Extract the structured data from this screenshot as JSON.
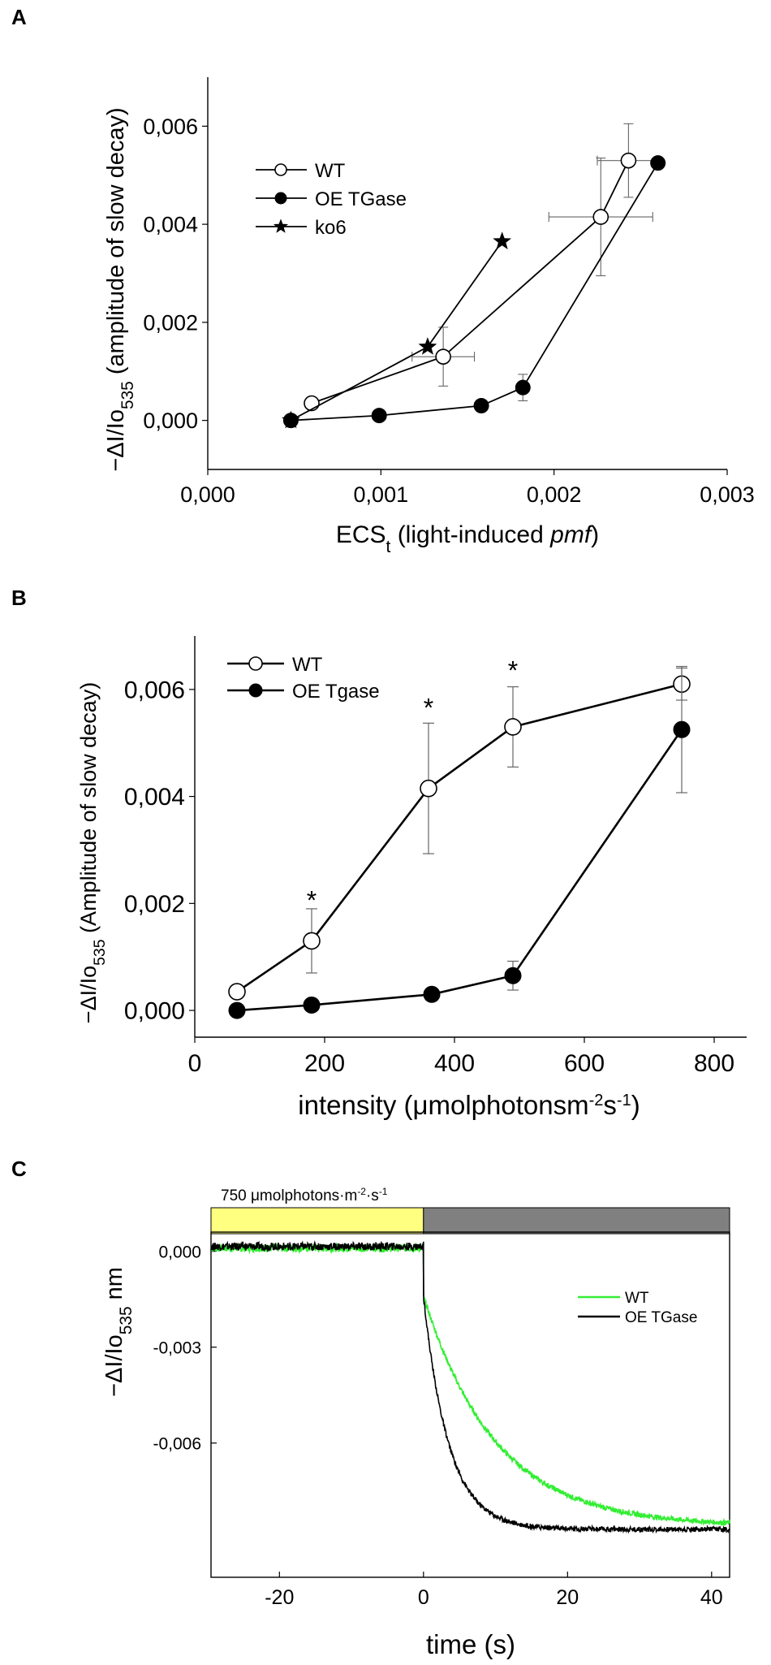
{
  "chart_data": [
    {
      "panel": "A",
      "type": "scatter",
      "xlabel": "ECS",
      "xlabel_sub": "t",
      "xlabel_rest": " (light-induced ",
      "xlabel_italic": "pmf",
      "xlabel_end": ")",
      "ylabel_prefix": "−ΔI/Io",
      "ylabel_sub": "535",
      "ylabel_rest": " (amplitude of slow decay)",
      "xlim": [
        0,
        0.003
      ],
      "ylim": [
        -0.001,
        0.007
      ],
      "xticks": [
        {
          "v": 0,
          "label": "0,000"
        },
        {
          "v": 0.001,
          "label": "0,001"
        },
        {
          "v": 0.002,
          "label": "0,002"
        },
        {
          "v": 0.003,
          "label": "0,003"
        }
      ],
      "yticks": [
        {
          "v": 0,
          "label": "0,000"
        },
        {
          "v": 0.002,
          "label": "0,002"
        },
        {
          "v": 0.004,
          "label": "0,004"
        },
        {
          "v": 0.006,
          "label": "0,006"
        }
      ],
      "legend": "top-left",
      "series": [
        {
          "name": "WT",
          "marker": "open-circle",
          "points": [
            {
              "x": 0.0006,
              "y": 0.00035,
              "xerr": 3e-05,
              "yerr": 0.0001
            },
            {
              "x": 0.00136,
              "y": 0.0013,
              "xerr": 0.00018,
              "yerr": 0.0006
            },
            {
              "x": 0.00227,
              "y": 0.00415,
              "xerr": 0.0003,
              "yerr": 0.0012
            },
            {
              "x": 0.00243,
              "y": 0.0053,
              "xerr": 0.00018,
              "yerr": 0.00075
            }
          ]
        },
        {
          "name": "OE TGase",
          "marker": "filled-circle",
          "points": [
            {
              "x": 0.00048,
              "y": 0.0,
              "xerr": 0,
              "yerr": 0
            },
            {
              "x": 0.00099,
              "y": 0.0001,
              "xerr": 0,
              "yerr": 0
            },
            {
              "x": 0.00158,
              "y": 0.0003,
              "xerr": 0,
              "yerr": 0
            },
            {
              "x": 0.00182,
              "y": 0.00067,
              "xerr": 0,
              "yerr": 0.00027
            },
            {
              "x": 0.0026,
              "y": 0.00525,
              "xerr": 0,
              "yerr": 0
            }
          ]
        },
        {
          "name": "ko6",
          "marker": "star",
          "points": [
            {
              "x": 0.00048,
              "y": 0.0,
              "xerr": 0,
              "yerr": 0
            },
            {
              "x": 0.00127,
              "y": 0.0015,
              "xerr": 0,
              "yerr": 0
            },
            {
              "x": 0.0017,
              "y": 0.00365,
              "xerr": 0,
              "yerr": 0
            }
          ]
        }
      ]
    },
    {
      "panel": "B",
      "type": "line",
      "xlabel_main": "intensity (μmolphotonsm",
      "xlabel_sup1": "-2",
      "xlabel_mid": "s",
      "xlabel_sup2": "-1",
      "xlabel_end": ")",
      "ylabel_prefix": "−ΔI/Io",
      "ylabel_sub": "535",
      "ylabel_rest": " (Amplitude of slow decay)",
      "xlim": [
        0,
        850
      ],
      "ylim": [
        -0.0005,
        0.007
      ],
      "xticks": [
        {
          "v": 0,
          "label": "0"
        },
        {
          "v": 200,
          "label": "200"
        },
        {
          "v": 400,
          "label": "400"
        },
        {
          "v": 600,
          "label": "600"
        },
        {
          "v": 800,
          "label": "800"
        }
      ],
      "yticks": [
        {
          "v": 0,
          "label": "0,000"
        },
        {
          "v": 0.002,
          "label": "0,002"
        },
        {
          "v": 0.004,
          "label": "0,004"
        },
        {
          "v": 0.006,
          "label": "0,006"
        }
      ],
      "legend": "top-left",
      "series": [
        {
          "name": "WT",
          "marker": "open-circle",
          "points": [
            {
              "x": 65,
              "y": 0.00035,
              "yerr": 0.0001
            },
            {
              "x": 180,
              "y": 0.0013,
              "yerr": 0.0006
            },
            {
              "x": 360,
              "y": 0.00415,
              "yerr": 0.00122
            },
            {
              "x": 490,
              "y": 0.0053,
              "yerr": 0.00075
            },
            {
              "x": 750,
              "y": 0.0061,
              "yerr": 0.0003
            }
          ]
        },
        {
          "name": "OE Tgase",
          "marker": "filled-circle",
          "points": [
            {
              "x": 65,
              "y": 0.0,
              "yerr": 0
            },
            {
              "x": 180,
              "y": 0.0001,
              "yerr": 0
            },
            {
              "x": 365,
              "y": 0.0003,
              "yerr": 0
            },
            {
              "x": 490,
              "y": 0.00065,
              "yerr": 0.00027
            },
            {
              "x": 750,
              "y": 0.00525,
              "yerr": 0.00118
            }
          ]
        }
      ],
      "significance": [
        {
          "x": 180,
          "y": 0.0021,
          "label": "*"
        },
        {
          "x": 360,
          "y": 0.0057,
          "label": "*"
        },
        {
          "x": 490,
          "y": 0.0064,
          "label": "*"
        }
      ]
    },
    {
      "panel": "C",
      "type": "line",
      "xlabel": "time (s)",
      "ylabel_prefix": "−ΔI/Io",
      "ylabel_sub": "535",
      "ylabel_rest": " nm",
      "xlim": [
        -29.5,
        42.5
      ],
      "ylim": [
        -0.0102,
        0.0006
      ],
      "xticks": [
        {
          "v": -20,
          "label": "-20"
        },
        {
          "v": 0,
          "label": "0"
        },
        {
          "v": 20,
          "label": "20"
        },
        {
          "v": 40,
          "label": "40"
        }
      ],
      "yticks": [
        {
          "v": 0,
          "label": "0,000"
        },
        {
          "v": -0.003,
          "label": "-0,003"
        },
        {
          "v": -0.006,
          "label": "-0,006"
        }
      ],
      "light_bar": {
        "label": "750 μmolphotons·m",
        "sup1": "-2",
        "mid": "·s",
        "sup2": "-1",
        "on": [
          -29.5,
          0
        ],
        "off": [
          0,
          42.5
        ],
        "on_color": "#ffff80",
        "off_color": "#808080"
      },
      "legend": "right",
      "series": [
        {
          "name": "WT",
          "color": "#33ee33",
          "baseline": 0.0001,
          "jump_to": -0.0014,
          "tau": 10,
          "plateau": -0.0086,
          "x": [
            -29.5,
            -20,
            -10,
            0,
            1,
            3,
            5,
            7,
            10,
            14,
            18,
            22,
            26,
            30,
            34,
            38,
            42
          ],
          "y": [
            0.0001,
            0.0001,
            0.0001,
            0.0001,
            -0.0014,
            -0.0029,
            -0.0041,
            -0.0051,
            -0.0062,
            -0.0072,
            -0.0078,
            -0.0081,
            -0.0083,
            -0.0084,
            -0.0085,
            -0.0086,
            -0.0086
          ]
        },
        {
          "name": "OE TGase",
          "color": "#000000",
          "baseline": 0.00015,
          "jump_to": -0.0014,
          "tau": 3.5,
          "plateau": -0.0087,
          "x": [
            -29.5,
            -20,
            -10,
            0,
            1,
            2,
            3,
            5,
            7,
            10,
            14,
            20,
            30,
            42
          ],
          "y": [
            0.00015,
            0.00015,
            0.00015,
            0.00015,
            -0.0014,
            -0.0033,
            -0.0047,
            -0.0065,
            -0.0076,
            -0.0083,
            -0.0086,
            -0.0087,
            -0.0087,
            -0.0088
          ]
        }
      ]
    }
  ]
}
